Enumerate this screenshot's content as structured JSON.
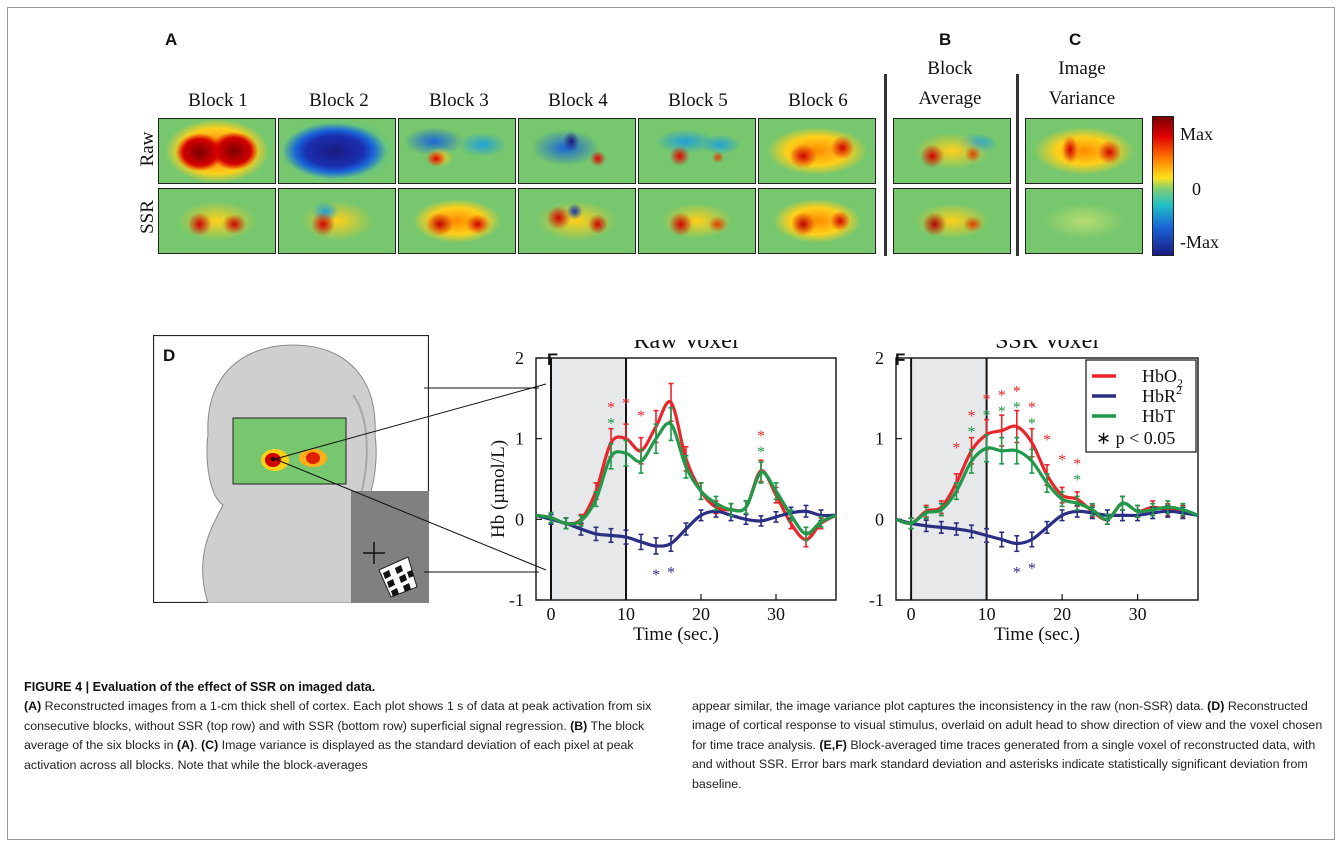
{
  "panel_labels": {
    "a": "A",
    "b": "B",
    "c": "C",
    "d": "D",
    "e": "E",
    "f": "F"
  },
  "panelA": {
    "block_labels": [
      "Block 1",
      "Block 2",
      "Block 3",
      "Block 4",
      "Block 5",
      "Block 6"
    ],
    "row_labels": [
      "Raw",
      "SSR"
    ]
  },
  "panelB": {
    "line1": "Block",
    "line2": "Average"
  },
  "panelC": {
    "line1": "Image",
    "line2": "Variance"
  },
  "colorbar": {
    "max": "Max",
    "zero": "0",
    "min": "-Max"
  },
  "colors": {
    "hbo2": "#e8262b",
    "hbr": "#2b2f84",
    "hbt": "#20994a",
    "sig_hbo2": "#e8262b",
    "sig_hbt": "#20994a",
    "sig_hbr": "#2b2f84",
    "shade": "#e6e8ea"
  },
  "chart_data": [
    {
      "type": "line",
      "title": "Raw Voxel",
      "xlabel": "Time (sec.)",
      "ylabel": "Hb (µmol/L)",
      "xlim": [
        -2,
        38
      ],
      "ylim": [
        -1,
        2
      ],
      "xticks": [
        "0",
        "10",
        "20",
        "30"
      ],
      "yticks": [
        "2",
        "1",
        "0",
        "-1"
      ],
      "stimulus_window": [
        0,
        10
      ],
      "x": [
        -2,
        0,
        2,
        4,
        6,
        8,
        10,
        12,
        14,
        16,
        18,
        20,
        22,
        24,
        26,
        28,
        30,
        32,
        34,
        36,
        38
      ],
      "series": [
        {
          "name": "HbO2",
          "values": [
            0.05,
            0.02,
            -0.05,
            0.0,
            0.35,
            0.95,
            1.0,
            0.85,
            1.15,
            1.45,
            0.75,
            0.35,
            0.15,
            0.12,
            0.15,
            0.6,
            0.3,
            -0.05,
            -0.25,
            -0.05,
            0.05
          ]
        },
        {
          "name": "HbR",
          "values": [
            0.05,
            0.0,
            -0.05,
            -0.12,
            -0.18,
            -0.2,
            -0.22,
            -0.28,
            -0.33,
            -0.3,
            -0.12,
            0.05,
            0.1,
            0.05,
            0.0,
            -0.02,
            0.03,
            0.08,
            0.1,
            0.05,
            0.05
          ]
        },
        {
          "name": "HbT",
          "values": [
            0.05,
            0.02,
            -0.05,
            -0.02,
            0.25,
            0.78,
            0.82,
            0.72,
            1.0,
            1.18,
            0.65,
            0.35,
            0.2,
            0.12,
            0.15,
            0.58,
            0.35,
            0.05,
            -0.18,
            -0.03,
            0.05
          ]
        }
      ],
      "significance": {
        "hbo2": [
          8,
          10,
          12,
          15,
          17,
          28
        ],
        "hbt": [
          8,
          15,
          28
        ],
        "hbr": [
          14,
          16
        ]
      },
      "significance_marker": "*"
    },
    {
      "type": "line",
      "title": "SSR Voxel",
      "xlabel": "Time (sec.)",
      "ylabel": "",
      "xlim": [
        -2,
        38
      ],
      "ylim": [
        -1,
        2
      ],
      "xticks": [
        "0",
        "10",
        "20",
        "30"
      ],
      "yticks": [
        "2",
        "1",
        "0",
        "-1"
      ],
      "stimulus_window": [
        0,
        10
      ],
      "x": [
        -2,
        0,
        2,
        4,
        6,
        8,
        10,
        12,
        14,
        16,
        18,
        20,
        22,
        24,
        26,
        28,
        30,
        32,
        34,
        36,
        38
      ],
      "series": [
        {
          "name": "HbO2",
          "values": [
            0.0,
            -0.05,
            0.1,
            0.15,
            0.45,
            0.85,
            1.05,
            1.1,
            1.15,
            0.95,
            0.55,
            0.3,
            0.25,
            0.1,
            0.0,
            0.2,
            0.1,
            0.15,
            0.12,
            0.1,
            0.05
          ]
        },
        {
          "name": "HbR",
          "values": [
            0.0,
            -0.05,
            -0.08,
            -0.1,
            -0.12,
            -0.15,
            -0.2,
            -0.25,
            -0.3,
            -0.25,
            -0.1,
            0.05,
            0.1,
            0.08,
            0.05,
            0.05,
            0.05,
            0.08,
            0.1,
            0.08,
            0.05
          ]
        },
        {
          "name": "HbT",
          "values": [
            0.0,
            -0.05,
            0.08,
            0.12,
            0.35,
            0.72,
            0.88,
            0.85,
            0.85,
            0.72,
            0.45,
            0.25,
            0.2,
            0.12,
            0.0,
            0.2,
            0.1,
            0.12,
            0.15,
            0.12,
            0.05
          ]
        }
      ],
      "significance": {
        "hbo2": [
          6,
          8,
          10,
          12,
          14,
          16,
          18,
          20,
          22
        ],
        "hbt": [
          8,
          10,
          12,
          14,
          16,
          22
        ],
        "hbr": [
          14,
          16
        ]
      },
      "significance_marker": "*"
    }
  ],
  "legend": {
    "hbo2_main": "HbO",
    "hbo2_sub": "2",
    "hbr_main": "HbR",
    "hbr_sup": "2",
    "hbt": "HbT",
    "sig": "∗ p < 0.05"
  },
  "caption": {
    "title": "FIGURE 4 | Evaluation of the effect of SSR on imaged data.",
    "a_tag": "(A)",
    "a_text": " Reconstructed images from a 1-cm thick shell of cortex. Each plot shows 1 s of data at peak activation from six consecutive blocks, without SSR (top row) and with SSR (bottom row) superficial signal regression. ",
    "b_tag": "(B)",
    "b_text": " The block average of the six blocks in ",
    "b_ref": "(A)",
    "b_end": ". ",
    "c_tag": "(C)",
    "c_text": " Image variance is displayed as the standard deviation of each pixel at peak activation across all blocks. Note that while the block-averages",
    "col2_start": "appear similar, the image variance plot captures the inconsistency in the raw (non-SSR) data. ",
    "d_tag": "(D)",
    "d_text": " Reconstructed image of cortical response to visual stimulus, overlaid on adult head to show direction of view and the voxel chosen for time trace analysis. ",
    "ef_tag": "(E,F)",
    "ef_text": " Block-averaged time traces generated from a single voxel of reconstructed data, with and without SSR. Error bars mark standard deviation and asterisks indicate statistically significant deviation from baseline."
  }
}
